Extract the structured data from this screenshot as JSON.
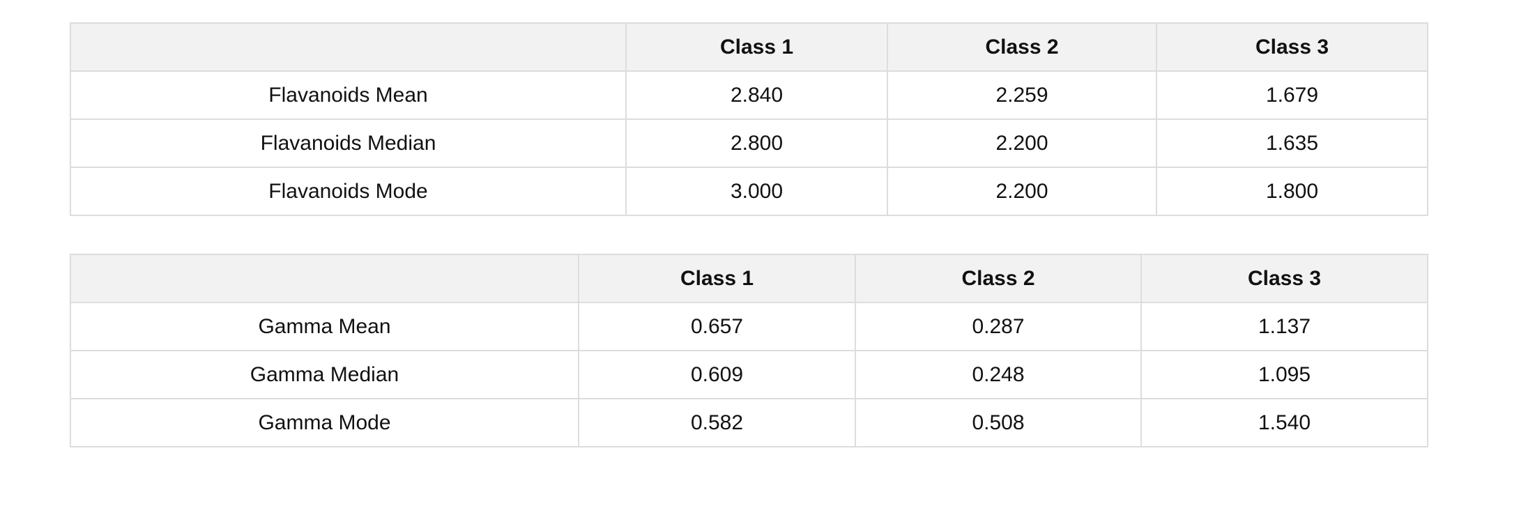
{
  "tables": [
    {
      "headers": [
        "",
        "Class 1",
        "Class 2",
        "Class 3"
      ],
      "rows": [
        [
          "Flavanoids Mean",
          "2.840",
          "2.259",
          "1.679"
        ],
        [
          "Flavanoids Median",
          "2.800",
          "2.200",
          "1.635"
        ],
        [
          "Flavanoids Mode",
          "3.000",
          "2.200",
          "1.800"
        ]
      ]
    },
    {
      "headers": [
        "",
        "Class 1",
        "Class 2",
        "Class 3"
      ],
      "rows": [
        [
          "Gamma Mean",
          "0.657",
          "0.287",
          "1.137"
        ],
        [
          "Gamma Median",
          "0.609",
          "0.248",
          "1.095"
        ],
        [
          "Gamma Mode",
          "0.582",
          "0.508",
          "1.540"
        ]
      ]
    }
  ]
}
